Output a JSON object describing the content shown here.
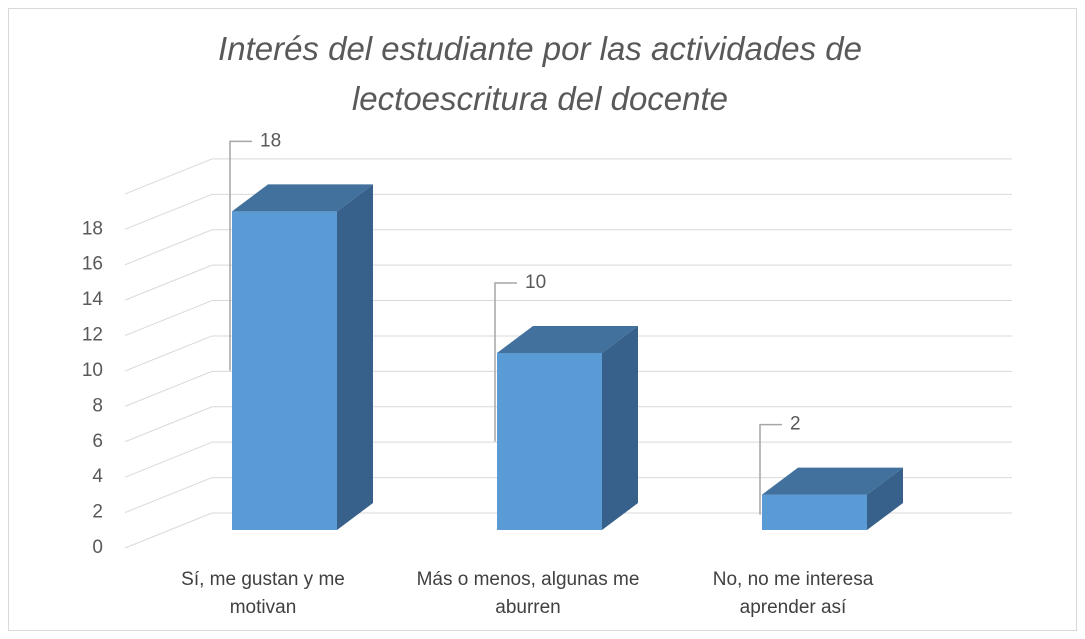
{
  "chart_data": {
    "type": "bar3d",
    "title": "Interés del estudiante por las actividades de lectoescritura del docente",
    "categories": [
      "Sí, me gustan y me motivan",
      "Más o menos, algunas me aburren",
      "No, no me interesa aprender así"
    ],
    "values": [
      18,
      10,
      2
    ],
    "color": "#5b9bd5",
    "ylim": [
      0,
      20
    ],
    "yticks": [
      0,
      2,
      4,
      6,
      8,
      10,
      12,
      14,
      16,
      18
    ],
    "grid": true,
    "data_labels": true
  }
}
